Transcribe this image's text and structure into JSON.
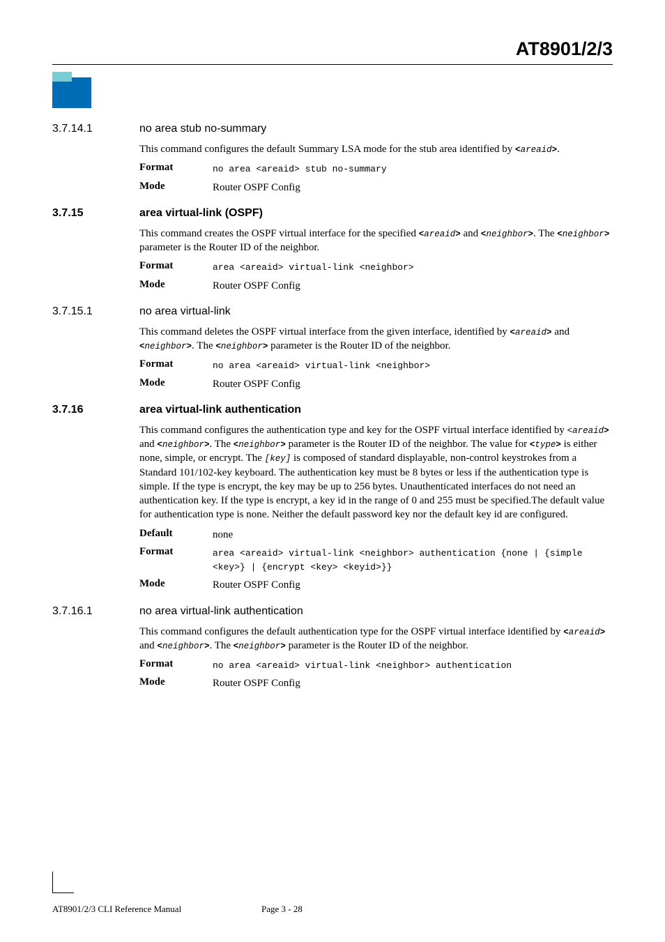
{
  "header": {
    "doc_title": "AT8901/2/3"
  },
  "sections": [
    {
      "num": "3.7.14.1",
      "title": "no area stub no-summary",
      "bold": false,
      "para": "This command configures the default Summary LSA mode for the stub area identified by <areaid>.",
      "para_segments": [
        {
          "t": "This command configures the default Summary LSA mode for the stub area identified by ",
          "c": ""
        },
        {
          "t": "<",
          "c": "inline-mono b"
        },
        {
          "t": "areaid",
          "c": "inline-mono i"
        },
        {
          "t": ">",
          "c": "inline-mono b"
        },
        {
          "t": ".",
          "c": ""
        }
      ],
      "rows": [
        {
          "k": "Format",
          "v_segments": [
            {
              "t": "no area ",
              "c": "mono b"
            },
            {
              "t": "<areaid>",
              "c": "mono i"
            },
            {
              "t": " stub no-summary",
              "c": "mono b"
            }
          ]
        },
        {
          "k": "Mode",
          "v": "Router OSPF Config"
        }
      ]
    },
    {
      "num": "3.7.15",
      "title": "area virtual-link (OSPF)",
      "bold": true,
      "para_segments": [
        {
          "t": "This command creates the OSPF virtual interface for the specified ",
          "c": ""
        },
        {
          "t": "<",
          "c": "inline-mono b"
        },
        {
          "t": "areaid",
          "c": "inline-mono i"
        },
        {
          "t": ">",
          "c": "inline-mono b"
        },
        {
          "t": " and ",
          "c": ""
        },
        {
          "t": "<",
          "c": "inline-mono b"
        },
        {
          "t": "neighbor",
          "c": "inline-mono i"
        },
        {
          "t": ">",
          "c": "inline-mono b"
        },
        {
          "t": ". The ",
          "c": ""
        },
        {
          "t": "<",
          "c": "inline-mono b"
        },
        {
          "t": "neighbor",
          "c": "inline-mono i"
        },
        {
          "t": ">",
          "c": "inline-mono b"
        },
        {
          "t": " parameter is the Router ID of the neighbor.",
          "c": ""
        }
      ],
      "rows": [
        {
          "k": "Format",
          "v_segments": [
            {
              "t": "area ",
              "c": "mono b"
            },
            {
              "t": "<areaid>",
              "c": "mono i"
            },
            {
              "t": " virtual-link ",
              "c": "mono b"
            },
            {
              "t": "<neighbor>",
              "c": "mono i"
            }
          ]
        },
        {
          "k": "Mode",
          "v": "Router OSPF Config"
        }
      ]
    },
    {
      "num": "3.7.15.1",
      "title": "no area virtual-link",
      "bold": false,
      "para_segments": [
        {
          "t": "This command deletes the OSPF virtual interface from the given interface, identified by ",
          "c": ""
        },
        {
          "t": "<",
          "c": "inline-mono b"
        },
        {
          "t": "areaid",
          "c": "inline-mono i"
        },
        {
          "t": ">",
          "c": "inline-mono b"
        },
        {
          "t": " and ",
          "c": ""
        },
        {
          "t": "<",
          "c": "inline-mono b"
        },
        {
          "t": "neighbor",
          "c": "inline-mono i"
        },
        {
          "t": ">",
          "c": "inline-mono b"
        },
        {
          "t": ". The ",
          "c": ""
        },
        {
          "t": "<",
          "c": "inline-mono b"
        },
        {
          "t": "neighbor",
          "c": "inline-mono i"
        },
        {
          "t": ">",
          "c": "inline-mono b"
        },
        {
          "t": " parameter is the Router ID of the neighbor.",
          "c": ""
        }
      ],
      "rows": [
        {
          "k": "Format",
          "v_segments": [
            {
              "t": "no area ",
              "c": "mono b"
            },
            {
              "t": "<areaid>",
              "c": "mono i"
            },
            {
              "t": " virtual-link ",
              "c": "mono b"
            },
            {
              "t": "<neighbor>",
              "c": "mono i"
            }
          ]
        },
        {
          "k": "Mode",
          "v": "Router OSPF Config"
        }
      ]
    },
    {
      "num": "3.7.16",
      "title": "area virtual-link authentication",
      "bold": true,
      "para_segments": [
        {
          "t": "This command configures the authentication type and key for the OSPF virtual interface identified by ",
          "c": ""
        },
        {
          "t": "<",
          "c": "inline-mono i"
        },
        {
          "t": "areaid",
          "c": "inline-mono i"
        },
        {
          "t": ">",
          "c": "inline-mono b"
        },
        {
          "t": " and ",
          "c": ""
        },
        {
          "t": "<",
          "c": "inline-mono b"
        },
        {
          "t": "neighbor",
          "c": "inline-mono i"
        },
        {
          "t": ">",
          "c": "inline-mono b"
        },
        {
          "t": ". The ",
          "c": ""
        },
        {
          "t": "<",
          "c": "inline-mono b"
        },
        {
          "t": "neighbor",
          "c": "inline-mono i"
        },
        {
          "t": ">",
          "c": "inline-mono b"
        },
        {
          "t": "  parameter is the Router ID of the neighbor. The value for ",
          "c": ""
        },
        {
          "t": "<",
          "c": "inline-mono b"
        },
        {
          "t": "type",
          "c": "inline-mono i"
        },
        {
          "t": ">",
          "c": "inline-mono b"
        },
        {
          "t": "  is either none, simple, or encrypt. The ",
          "c": ""
        },
        {
          "t": "[key]",
          "c": "inline-mono i"
        },
        {
          "t": " is composed of standard displayable, non-control keystrokes from a Standard 101/102-key keyboard. The authentication key must be 8 bytes or less if the authentication type is simple. If the type is encrypt, the key may be up to 256 bytes. Unauthenticated interfaces do not need an authentication key. If the type is encrypt, a key id in the range of 0 and 255 must be specified.The default value for authentication type is none. Neither the default password key nor the default key id are configured.",
          "c": ""
        }
      ],
      "rows": [
        {
          "k": "Default",
          "v": "none"
        },
        {
          "k": "Format",
          "v_segments": [
            {
              "t": "area ",
              "c": "mono b"
            },
            {
              "t": "<areaid>",
              "c": "mono i"
            },
            {
              "t": " virtual-link ",
              "c": "mono b"
            },
            {
              "t": "<neighbor>",
              "c": "mono i"
            },
            {
              "t": " authentication ",
              "c": "mono b"
            },
            {
              "t": "{none | {simple <key>} | {encrypt <key> <keyid>}}",
              "c": "mono i"
            }
          ],
          "multiline": true
        },
        {
          "k": "Mode",
          "v": "Router OSPF Config"
        }
      ]
    },
    {
      "num": "3.7.16.1",
      "title": "no area virtual-link authentication",
      "bold": false,
      "para_segments": [
        {
          "t": "This command configures the default authentication type for the OSPF virtual interface identified by ",
          "c": ""
        },
        {
          "t": "<",
          "c": "inline-mono b"
        },
        {
          "t": "areaid",
          "c": "inline-mono i"
        },
        {
          "t": ">",
          "c": "inline-mono b"
        },
        {
          "t": " and  ",
          "c": ""
        },
        {
          "t": "<",
          "c": "inline-mono b"
        },
        {
          "t": "neighbor",
          "c": "inline-mono i"
        },
        {
          "t": ">",
          "c": "inline-mono b"
        },
        {
          "t": ". The ",
          "c": ""
        },
        {
          "t": "<",
          "c": "inline-mono b"
        },
        {
          "t": "neighbor",
          "c": "inline-mono i"
        },
        {
          "t": ">",
          "c": "inline-mono b"
        },
        {
          "t": " parameter is the Router ID of the neighbor.",
          "c": ""
        }
      ],
      "rows": [
        {
          "k": "Format",
          "v_segments": [
            {
              "t": "no area ",
              "c": "mono b"
            },
            {
              "t": "<areaid>",
              "c": "mono i"
            },
            {
              "t": " virtual-link ",
              "c": "mono b"
            },
            {
              "t": "<neighbor>",
              "c": "mono i"
            },
            {
              "t": " authentication",
              "c": "mono b"
            }
          ]
        },
        {
          "k": "Mode",
          "v": "Router OSPF Config"
        }
      ]
    }
  ],
  "footer": {
    "ref": "AT8901/2/3 CLI Reference Manual",
    "page": "Page 3 - 28"
  }
}
